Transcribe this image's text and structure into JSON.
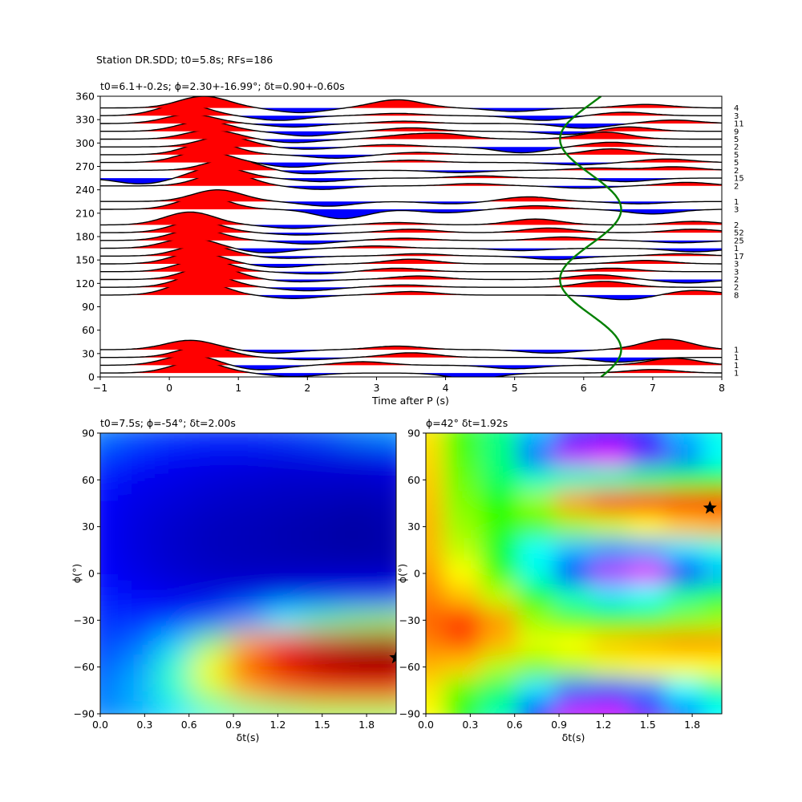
{
  "figure": {
    "suptitle": "Station DR.SDD; t0=5.8s; RFs=186"
  },
  "chart_data": [
    {
      "type": "line",
      "title": "t0=6.1+-0.2s; ϕ=2.30+-16.99°; δt=0.90+-0.60s",
      "xlabel": "Time after P (s)",
      "ylabel": "",
      "xlim": [
        -1,
        8
      ],
      "ylim": [
        0,
        360
      ],
      "xticks": [
        "−1",
        "0",
        "1",
        "2",
        "3",
        "4",
        "5",
        "6",
        "7",
        "8"
      ],
      "yticks": [
        "0",
        "30",
        "60",
        "90",
        "120",
        "150",
        "180",
        "210",
        "240",
        "270",
        "300",
        "330",
        "360"
      ],
      "positive_fill_color": "#ff0000",
      "negative_fill_color": "#0000ff",
      "trace_color": "#000000",
      "fit_curve_color": "#008000",
      "fit_curve": {
        "mean_t": 6.1,
        "amplitude": 0.45,
        "phase_deg": 2.3
      },
      "bins": [
        {
          "baz": 5,
          "count": "1",
          "peaks": [
            [
              0.4,
              1.0
            ],
            [
              1.8,
              -0.3
            ],
            [
              4.4,
              -0.5
            ],
            [
              7.0,
              0.3
            ]
          ]
        },
        {
          "baz": 15,
          "count": "1",
          "peaks": [
            [
              0.3,
              0.9
            ],
            [
              1.3,
              -0.4
            ],
            [
              2.8,
              0.3
            ],
            [
              5.0,
              -0.3
            ],
            [
              7.3,
              0.6
            ]
          ]
        },
        {
          "baz": 25,
          "count": "1",
          "peaks": [
            [
              0.5,
              1.0
            ],
            [
              2.0,
              -0.2
            ],
            [
              3.5,
              0.4
            ],
            [
              6.5,
              -0.4
            ]
          ]
        },
        {
          "baz": 35,
          "count": "1",
          "peaks": [
            [
              0.3,
              0.8
            ],
            [
              1.5,
              -0.3
            ],
            [
              3.3,
              0.3
            ],
            [
              5.5,
              -0.3
            ],
            [
              7.2,
              0.9
            ]
          ]
        },
        {
          "baz": 105,
          "count": "8",
          "peaks": [
            [
              0.4,
              1.3
            ],
            [
              1.8,
              -0.3
            ],
            [
              3.5,
              0.3
            ],
            [
              6.6,
              -0.4
            ],
            [
              7.6,
              0.4
            ]
          ]
        },
        {
          "baz": 115,
          "count": "2",
          "peaks": [
            [
              0.5,
              1.2
            ],
            [
              2.0,
              -0.3
            ],
            [
              3.4,
              0.2
            ],
            [
              6.3,
              0.5
            ]
          ]
        },
        {
          "baz": 125,
          "count": "2",
          "peaks": [
            [
              0.6,
              1.2
            ],
            [
              1.9,
              -0.2
            ],
            [
              3.6,
              0.3
            ],
            [
              6.2,
              0.4
            ],
            [
              7.5,
              -0.3
            ]
          ]
        },
        {
          "baz": 135,
          "count": "3",
          "peaks": [
            [
              0.5,
              1.1
            ],
            [
              2.1,
              -0.2
            ],
            [
              3.3,
              0.3
            ],
            [
              6.4,
              0.3
            ]
          ]
        },
        {
          "baz": 145,
          "count": "3",
          "peaks": [
            [
              0.4,
              1.0
            ],
            [
              1.6,
              -0.3
            ],
            [
              3.5,
              0.4
            ],
            [
              6.9,
              0.3
            ]
          ]
        },
        {
          "baz": 155,
          "count": "17",
          "peaks": [
            [
              0.5,
              1.0
            ],
            [
              1.7,
              -0.2
            ],
            [
              3.6,
              0.2
            ],
            [
              5.6,
              -0.3
            ],
            [
              7.4,
              0.2
            ]
          ]
        },
        {
          "baz": 165,
          "count": "1",
          "peaks": [
            [
              0.3,
              0.9
            ],
            [
              1.4,
              -0.4
            ],
            [
              3.0,
              0.2
            ],
            [
              5.1,
              -0.2
            ],
            [
              7.6,
              -0.3
            ]
          ]
        },
        {
          "baz": 175,
          "count": "25",
          "peaks": [
            [
              0.4,
              1.0
            ],
            [
              2.0,
              -0.3
            ],
            [
              3.4,
              0.2
            ],
            [
              5.7,
              0.3
            ],
            [
              7.4,
              -0.2
            ]
          ]
        },
        {
          "baz": 185,
          "count": "52",
          "peaks": [
            [
              0.4,
              1.0
            ],
            [
              1.9,
              -0.2
            ],
            [
              3.5,
              0.3
            ],
            [
              5.5,
              0.4
            ],
            [
              7.6,
              0.3
            ]
          ]
        },
        {
          "baz": 195,
          "count": "2",
          "peaks": [
            [
              0.3,
              1.1
            ],
            [
              1.8,
              -0.3
            ],
            [
              3.3,
              0.2
            ],
            [
              5.3,
              0.5
            ],
            [
              7.6,
              0.3
            ]
          ]
        },
        {
          "baz": 215,
          "count": "3",
          "peaks": [
            [
              0.5,
              1.1
            ],
            [
              2.5,
              -0.8
            ],
            [
              4.0,
              -0.3
            ],
            [
              5.3,
              0.3
            ],
            [
              7.0,
              -0.4
            ]
          ]
        },
        {
          "baz": 225,
          "count": "1",
          "peaks": [
            [
              0.7,
              1.0
            ],
            [
              2.3,
              -0.4
            ],
            [
              4.1,
              -0.2
            ],
            [
              5.2,
              0.4
            ],
            [
              6.8,
              -0.2
            ]
          ]
        },
        {
          "baz": 245,
          "count": "2",
          "peaks": [
            [
              0.8,
              1.2
            ],
            [
              2.2,
              -0.3
            ],
            [
              4.4,
              0.2
            ],
            [
              6.0,
              -0.2
            ],
            [
              7.5,
              0.3
            ]
          ]
        },
        {
          "baz": 255,
          "count": "15",
          "peaks": [
            [
              -0.4,
              -0.5
            ],
            [
              0.7,
              1.0
            ],
            [
              2.2,
              -0.3
            ],
            [
              4.5,
              0.2
            ],
            [
              6.6,
              -0.3
            ]
          ]
        },
        {
          "baz": 265,
          "count": "2",
          "peaks": [
            [
              0.9,
              1.0
            ],
            [
              2.0,
              -0.3
            ],
            [
              4.2,
              -0.2
            ],
            [
              6.2,
              0.2
            ],
            [
              7.3,
              0.3
            ]
          ]
        },
        {
          "baz": 275,
          "count": "5",
          "peaks": [
            [
              0.5,
              1.0
            ],
            [
              1.8,
              -0.4
            ],
            [
              3.5,
              0.2
            ],
            [
              5.9,
              -0.2
            ],
            [
              7.2,
              0.3
            ]
          ]
        },
        {
          "baz": 285,
          "count": "5",
          "peaks": [
            [
              0.6,
              1.1
            ],
            [
              2.4,
              -0.3
            ],
            [
              3.6,
              0.2
            ],
            [
              6.4,
              0.5
            ]
          ]
        },
        {
          "baz": 295,
          "count": "2",
          "peaks": [
            [
              0.8,
              0.9
            ],
            [
              2.0,
              -0.2
            ],
            [
              3.2,
              0.2
            ],
            [
              5.1,
              -0.5
            ],
            [
              6.4,
              0.4
            ]
          ]
        },
        {
          "baz": 305,
          "count": "5",
          "peaks": [
            [
              0.6,
              0.8
            ],
            [
              1.8,
              -0.3
            ],
            [
              3.4,
              0.3
            ],
            [
              4.0,
              0.4
            ],
            [
              6.3,
              0.6
            ]
          ]
        },
        {
          "baz": 315,
          "count": "9",
          "peaks": [
            [
              0.5,
              0.9
            ],
            [
              2.0,
              -0.4
            ],
            [
              3.5,
              0.3
            ],
            [
              5.8,
              -0.3
            ],
            [
              6.6,
              0.4
            ]
          ]
        },
        {
          "baz": 325,
          "count": "11",
          "peaks": [
            [
              0.3,
              0.8
            ],
            [
              1.8,
              -0.3
            ],
            [
              3.4,
              0.2
            ],
            [
              6.0,
              -0.4
            ],
            [
              7.3,
              0.3
            ]
          ]
        },
        {
          "baz": 335,
          "count": "3",
          "peaks": [
            [
              0.2,
              1.0
            ],
            [
              1.6,
              -0.4
            ],
            [
              3.3,
              0.2
            ],
            [
              5.4,
              -0.4
            ],
            [
              6.6,
              0.3
            ]
          ]
        },
        {
          "baz": 345,
          "count": "4",
          "peaks": [
            [
              0.5,
              1.0
            ],
            [
              1.9,
              -0.4
            ],
            [
              3.3,
              0.7
            ],
            [
              5.0,
              -0.3
            ],
            [
              6.9,
              0.3
            ]
          ]
        }
      ]
    },
    {
      "type": "heatmap",
      "title": "t0=7.5s; ϕ=-54°; δt=2.00s",
      "xlabel": "δt(s)",
      "ylabel": "ϕ(°)",
      "xlim": [
        0,
        2.0
      ],
      "ylim": [
        -90,
        90
      ],
      "xticks": [
        "0.0",
        "0.3",
        "0.6",
        "0.9",
        "1.2",
        "1.5",
        "1.8"
      ],
      "yticks": [
        "−90",
        "−60",
        "−30",
        "0",
        "30",
        "60",
        "90"
      ],
      "best": {
        "dt": 2.0,
        "phi": -54
      },
      "colormap": "jet",
      "colormap_stops": [
        "#00007f",
        "#0000ff",
        "#00ffff",
        "#ffff00",
        "#ff0000",
        "#7f0000"
      ],
      "grid": {
        "dt": [
          0.0,
          0.25,
          0.5,
          0.75,
          1.0,
          1.25,
          1.5,
          1.75,
          2.0
        ],
        "phi": [
          90,
          75,
          60,
          45,
          30,
          15,
          0,
          -15,
          -30,
          -45,
          -60,
          -75,
          -90
        ],
        "values": [
          [
            0.3,
            0.27,
            0.25,
            0.24,
            0.24,
            0.25,
            0.27,
            0.3,
            0.32
          ],
          [
            0.25,
            0.22,
            0.19,
            0.18,
            0.17,
            0.16,
            0.16,
            0.16,
            0.18
          ],
          [
            0.22,
            0.18,
            0.16,
            0.14,
            0.13,
            0.12,
            0.12,
            0.12,
            0.13
          ],
          [
            0.2,
            0.16,
            0.14,
            0.12,
            0.11,
            0.1,
            0.09,
            0.08,
            0.09
          ],
          [
            0.19,
            0.15,
            0.12,
            0.1,
            0.09,
            0.08,
            0.07,
            0.06,
            0.08
          ],
          [
            0.19,
            0.15,
            0.12,
            0.1,
            0.09,
            0.08,
            0.07,
            0.06,
            0.07
          ],
          [
            0.2,
            0.16,
            0.13,
            0.11,
            0.1,
            0.1,
            0.1,
            0.1,
            0.1
          ],
          [
            0.22,
            0.19,
            0.17,
            0.16,
            0.17,
            0.18,
            0.19,
            0.2,
            0.21
          ],
          [
            0.24,
            0.23,
            0.23,
            0.26,
            0.32,
            0.4,
            0.46,
            0.5,
            0.52
          ],
          [
            0.25,
            0.28,
            0.36,
            0.5,
            0.66,
            0.78,
            0.86,
            0.9,
            0.92
          ],
          [
            0.27,
            0.32,
            0.44,
            0.6,
            0.76,
            0.86,
            0.93,
            0.97,
            0.98
          ],
          [
            0.29,
            0.34,
            0.44,
            0.56,
            0.66,
            0.72,
            0.76,
            0.78,
            0.78
          ],
          [
            0.3,
            0.33,
            0.38,
            0.44,
            0.48,
            0.5,
            0.52,
            0.52,
            0.52
          ]
        ]
      }
    },
    {
      "type": "heatmap",
      "title": "ϕ=42° δt=1.92s",
      "xlabel": "δt(s)",
      "ylabel": "ϕ(°)",
      "xlim": [
        0,
        2.0
      ],
      "ylim": [
        -90,
        90
      ],
      "xticks": [
        "0.0",
        "0.3",
        "0.6",
        "0.9",
        "1.2",
        "1.5",
        "1.8"
      ],
      "yticks": [
        "−90",
        "−60",
        "−30",
        "0",
        "30",
        "60",
        "90"
      ],
      "best": {
        "dt": 1.92,
        "phi": 42
      },
      "colormap": "hsv",
      "colormap_stops": [
        "#ff00ff",
        "#0000ff",
        "#00ffff",
        "#00ff00",
        "#ffff00",
        "#ff0000"
      ],
      "grid": {
        "dt": [
          0.0,
          0.25,
          0.5,
          0.75,
          1.0,
          1.25,
          1.5,
          1.75,
          2.0
        ],
        "phi": [
          90,
          75,
          60,
          45,
          30,
          15,
          0,
          -15,
          -30,
          -45,
          -60,
          -75,
          -90
        ],
        "values": [
          [
            0.82,
            0.65,
            0.5,
            0.35,
            0.25,
            0.22,
            0.25,
            0.35,
            0.42
          ],
          [
            0.83,
            0.66,
            0.5,
            0.28,
            0.05,
            0.02,
            0.12,
            0.3,
            0.4
          ],
          [
            0.84,
            0.68,
            0.52,
            0.45,
            0.45,
            0.46,
            0.5,
            0.55,
            0.58
          ],
          [
            0.85,
            0.7,
            0.62,
            0.72,
            0.88,
            0.96,
            0.98,
            0.99,
            0.99
          ],
          [
            0.86,
            0.72,
            0.64,
            0.66,
            0.72,
            0.76,
            0.8,
            0.84,
            0.86
          ],
          [
            0.86,
            0.75,
            0.56,
            0.4,
            0.35,
            0.32,
            0.33,
            0.38,
            0.42
          ],
          [
            0.88,
            0.8,
            0.64,
            0.42,
            0.22,
            0.06,
            0.02,
            0.18,
            0.35
          ],
          [
            0.9,
            0.85,
            0.75,
            0.58,
            0.45,
            0.38,
            0.4,
            0.48,
            0.55
          ],
          [
            0.92,
            0.96,
            0.88,
            0.72,
            0.66,
            0.64,
            0.66,
            0.7,
            0.72
          ],
          [
            0.9,
            0.93,
            0.86,
            0.78,
            0.8,
            0.84,
            0.86,
            0.88,
            0.88
          ],
          [
            0.86,
            0.84,
            0.74,
            0.7,
            0.74,
            0.78,
            0.8,
            0.8,
            0.8
          ],
          [
            0.82,
            0.68,
            0.52,
            0.38,
            0.28,
            0.26,
            0.3,
            0.4,
            0.48
          ],
          [
            0.8,
            0.6,
            0.46,
            0.2,
            0.05,
            0.04,
            0.12,
            0.3,
            0.4
          ]
        ]
      }
    }
  ]
}
